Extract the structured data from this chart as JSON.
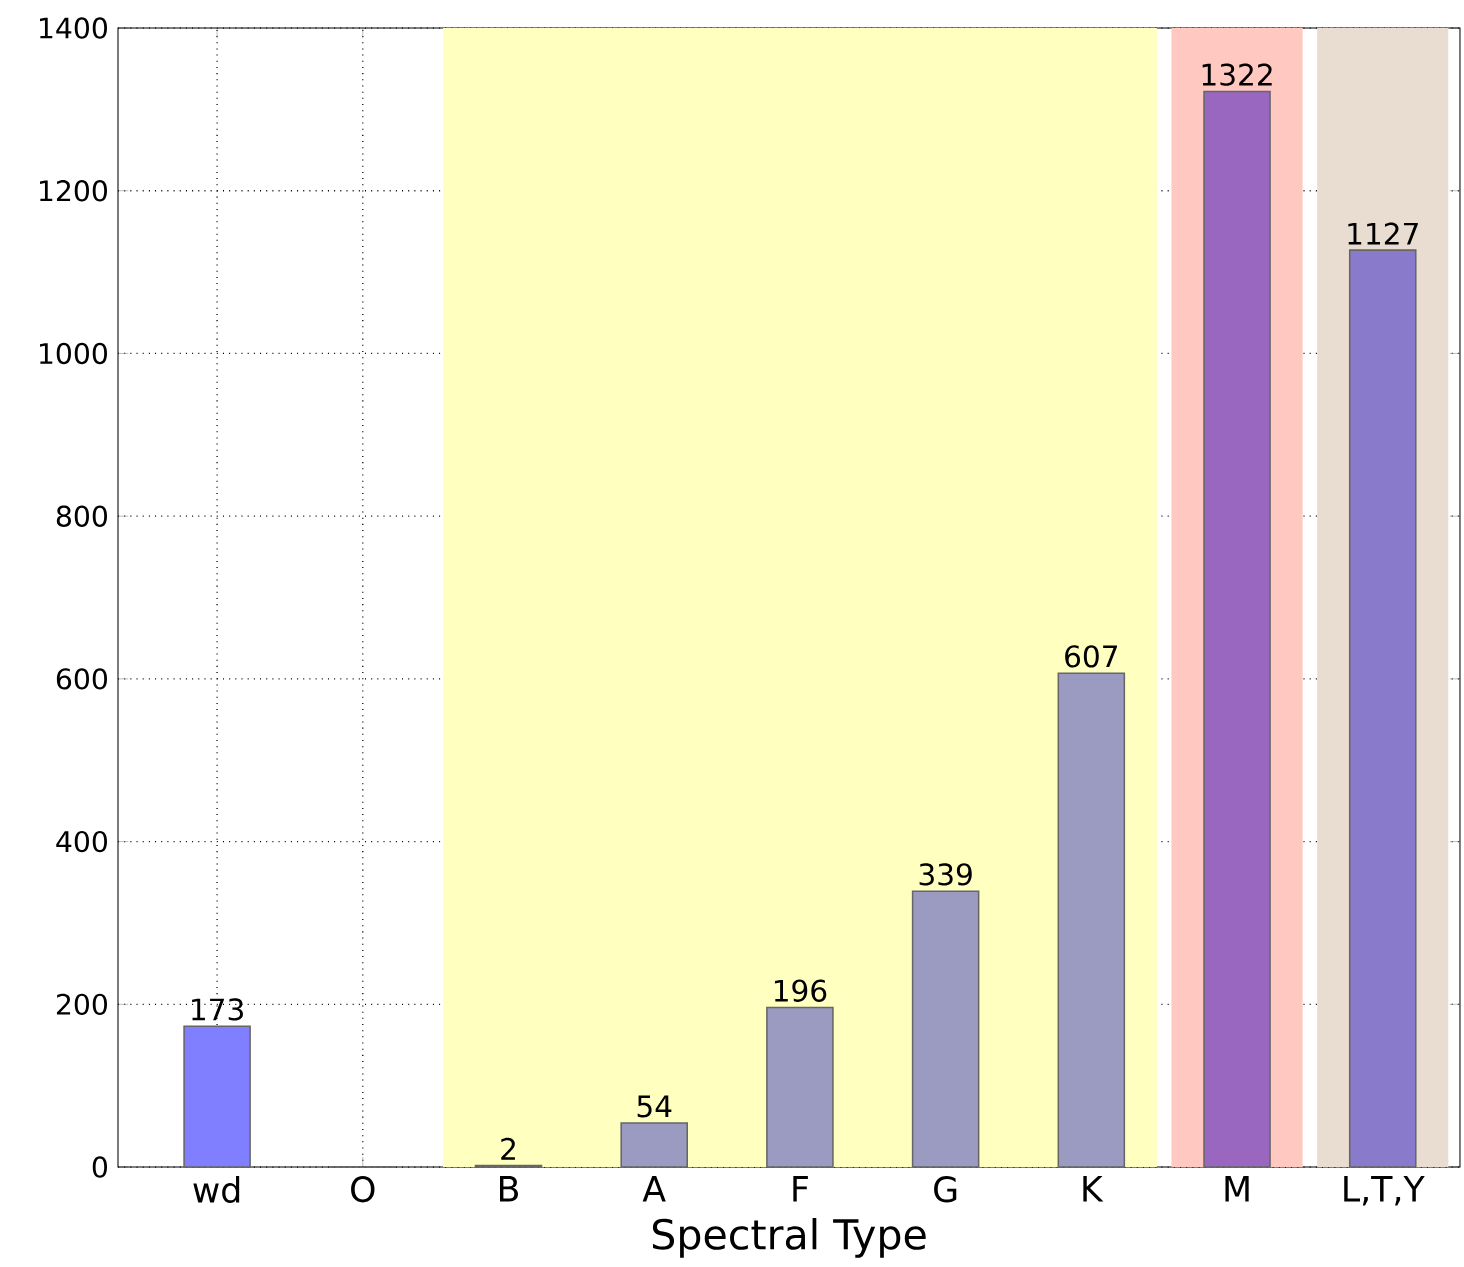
{
  "chart_data": {
    "type": "bar",
    "xlabel": "Spectral Type",
    "categories": [
      "wd",
      "O",
      "B",
      "A",
      "F",
      "G",
      "K",
      "M",
      "L,T,Y"
    ],
    "values": [
      173,
      0,
      2,
      54,
      196,
      339,
      607,
      1322,
      1127
    ],
    "value_labels": [
      "173",
      null,
      "2",
      "54",
      "196",
      "339",
      "607",
      "1322",
      "1127"
    ],
    "colors": [
      "#7f7fff",
      "#9b9bc1",
      "#9b9bc1",
      "#9b9bc1",
      "#9b9bc1",
      "#9b9bc1",
      "#9b9bc1",
      "#9966c0",
      "#8a7acc"
    ],
    "bands": [
      {
        "axis": "x",
        "from": "B",
        "to": "K",
        "color": "#ffffc0"
      },
      {
        "axis": "x",
        "from": "M",
        "to": "M",
        "color": "#ffc8c0"
      },
      {
        "axis": "x",
        "from": "L,T,Y",
        "to": "L,T,Y",
        "color": "#e8ddd0"
      }
    ],
    "ylim": [
      0,
      1400
    ],
    "yticks": [
      0,
      200,
      400,
      600,
      800,
      1000,
      1200,
      1400
    ],
    "grid": true
  }
}
